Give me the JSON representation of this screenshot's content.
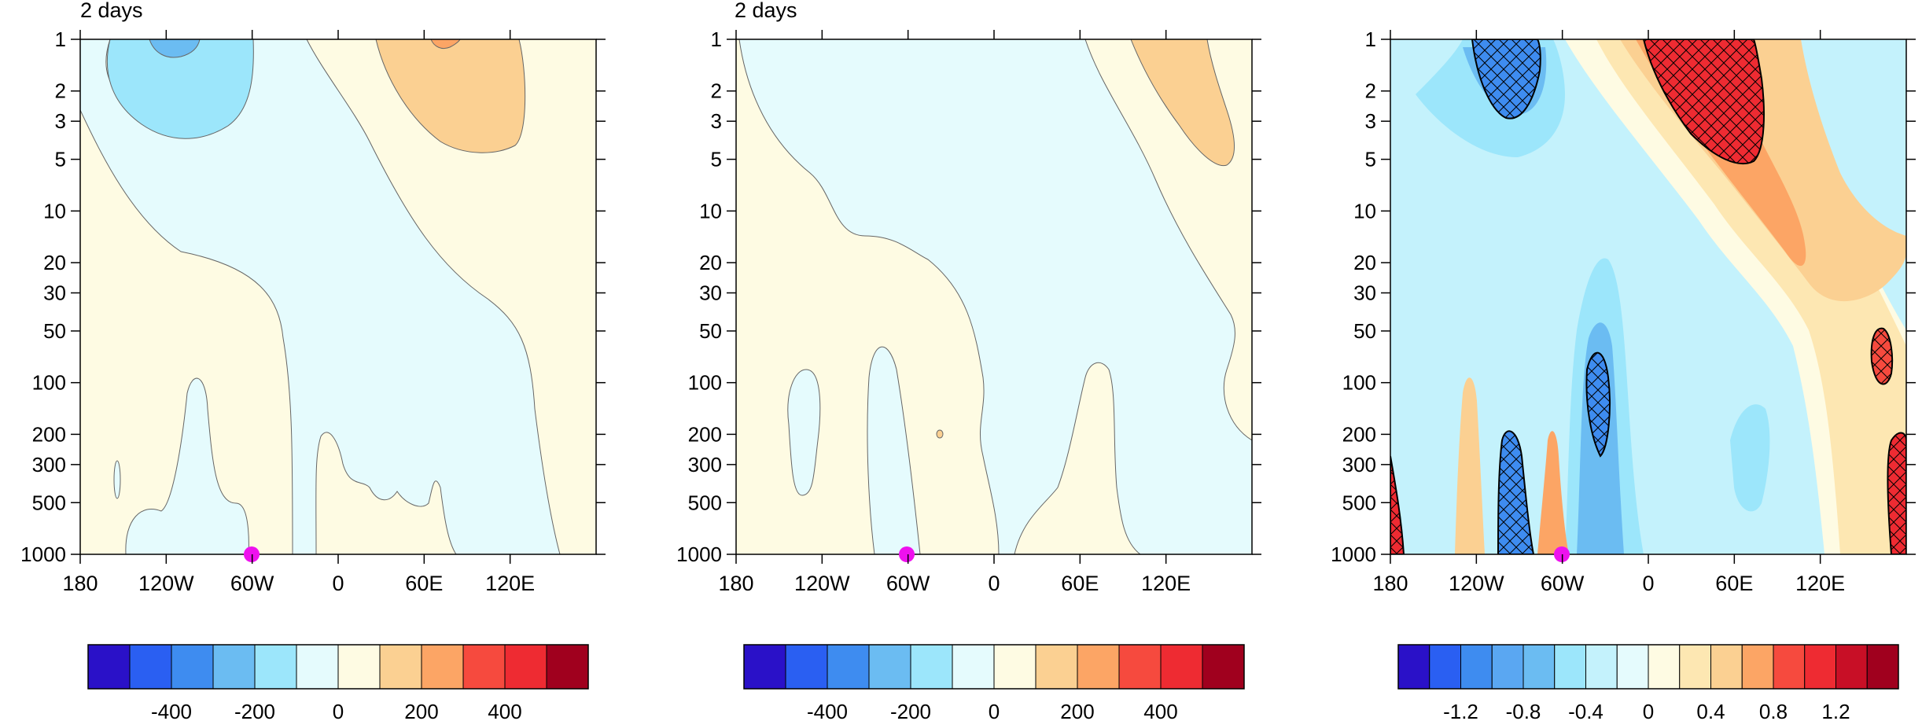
{
  "chart_data": [
    {
      "type": "heatmap",
      "panel": "left",
      "title": "2 days",
      "xlabel": "",
      "ylabel": "",
      "x_range": [
        -180,
        180
      ],
      "y_scale": "log",
      "y_range": [
        1,
        1000
      ],
      "x_ticks": [
        "180",
        "120W",
        "60W",
        "0",
        "60E",
        "120E"
      ],
      "y_ticks": [
        "1",
        "2",
        "3",
        "5",
        "10",
        "20",
        "30",
        "50",
        "100",
        "200",
        "300",
        "500",
        "1000"
      ],
      "colorbar": {
        "labels": [
          "-400",
          "-200",
          "0",
          "200",
          "400"
        ],
        "colors": [
          "#2a11c8",
          "#2a5ff2",
          "#3e8cf0",
          "#6bbcf2",
          "#9ce6fb",
          "#e5fbfd",
          "#fefbe3",
          "#fbd092",
          "#fca565",
          "#f64a3e",
          "#ee2b32",
          "#a0001e"
        ]
      },
      "regions": [
        {
          "color": "#fefbe3",
          "shape": "background",
          "x": [
            -180,
            180
          ],
          "y": [
            1,
            1000
          ]
        },
        {
          "color": "#e5fbfd",
          "shape": "band",
          "from": [
            -160,
            1
          ],
          "to": [
            140,
            1000
          ],
          "note": "diagonal negative band tilting eastward with depth"
        },
        {
          "color": "#9ce6fb",
          "center": [
            -120,
            1.6
          ],
          "value": -200
        },
        {
          "color": "#6bbcf2",
          "center": [
            -120,
            1.05
          ],
          "value": -300
        },
        {
          "color": "#fbd092",
          "center": [
            75,
            2
          ],
          "value": 200
        },
        {
          "color": "#fca565",
          "center": [
            80,
            1
          ],
          "value": 300
        }
      ],
      "marker": {
        "x": -60,
        "y": 1000,
        "color": "#ee11ee"
      }
    },
    {
      "type": "heatmap",
      "panel": "middle",
      "title": "2 days",
      "xlabel": "",
      "ylabel": "",
      "x_range": [
        -180,
        180
      ],
      "y_scale": "log",
      "y_range": [
        1,
        1000
      ],
      "x_ticks": [
        "180",
        "120W",
        "60W",
        "0",
        "60E",
        "120E"
      ],
      "y_ticks": [
        "1",
        "2",
        "3",
        "5",
        "10",
        "20",
        "30",
        "50",
        "100",
        "200",
        "300",
        "500",
        "1000"
      ],
      "colorbar": {
        "labels": [
          "-400",
          "-200",
          "0",
          "200",
          "400"
        ],
        "colors": [
          "#2a11c8",
          "#2a5ff2",
          "#3e8cf0",
          "#6bbcf2",
          "#9ce6fb",
          "#e5fbfd",
          "#fefbe3",
          "#fbd092",
          "#fca565",
          "#f64a3e",
          "#ee2b32",
          "#a0001e"
        ]
      },
      "regions": [
        {
          "color": "#fefbe3",
          "shape": "background",
          "x": [
            -180,
            180
          ],
          "y": [
            1,
            1000
          ]
        },
        {
          "color": "#e5fbfd",
          "shape": "band",
          "from": [
            -180,
            1
          ],
          "to": [
            170,
            1000
          ],
          "note": "broad negative region tilting eastward with depth"
        },
        {
          "color": "#fbd092",
          "center": [
            110,
            2.5
          ],
          "value": 200
        }
      ],
      "marker": {
        "x": -60,
        "y": 1000,
        "color": "#ee11ee"
      }
    },
    {
      "type": "heatmap",
      "panel": "right",
      "title": "",
      "xlabel": "",
      "ylabel": "",
      "x_range": [
        -180,
        180
      ],
      "y_scale": "log",
      "y_range": [
        1,
        1000
      ],
      "x_ticks": [
        "180",
        "120W",
        "60W",
        "0",
        "60E",
        "120E"
      ],
      "y_ticks": [
        "1",
        "2",
        "3",
        "5",
        "10",
        "20",
        "30",
        "50",
        "100",
        "200",
        "300",
        "500",
        "1000"
      ],
      "colorbar": {
        "labels": [
          "-1.2",
          "-0.8",
          "-0.4",
          "0",
          "0.4",
          "0.8",
          "1.2"
        ],
        "colors": [
          "#2a11c8",
          "#2a5ff2",
          "#3e8cf0",
          "#5aa7f2",
          "#6bbcf2",
          "#9ce6fb",
          "#c4f2fc",
          "#e5fbfd",
          "#fefbe3",
          "#fde7b2",
          "#fbd092",
          "#fca565",
          "#f64a3e",
          "#ee2b32",
          "#c80f26",
          "#a0001e"
        ]
      },
      "regions": [
        {
          "color": "#3e8cf0",
          "center": [
            -110,
            1.8
          ],
          "hatched": true,
          "value": -1.0
        },
        {
          "color": "#ee2b32",
          "center": [
            55,
            2.0
          ],
          "hatched": true,
          "value": 1.0
        },
        {
          "color": "#3e8cf0",
          "center": [
            -40,
            150
          ],
          "hatched": true,
          "value": -1.0
        },
        {
          "color": "#3e8cf0",
          "center": [
            -95,
            500
          ],
          "hatched": true,
          "value": -1.0
        },
        {
          "color": "#ee2b32",
          "center": [
            -178,
            700
          ],
          "hatched": true,
          "value": 1.0
        },
        {
          "color": "#ee2b32",
          "center": [
            175,
            500
          ],
          "hatched": true,
          "value": 1.0
        },
        {
          "color": "#f64a3e",
          "center": [
            162,
            80
          ],
          "hatched": true,
          "value": 0.9
        }
      ],
      "marker": {
        "x": -60,
        "y": 1000,
        "color": "#ee11ee"
      }
    }
  ]
}
